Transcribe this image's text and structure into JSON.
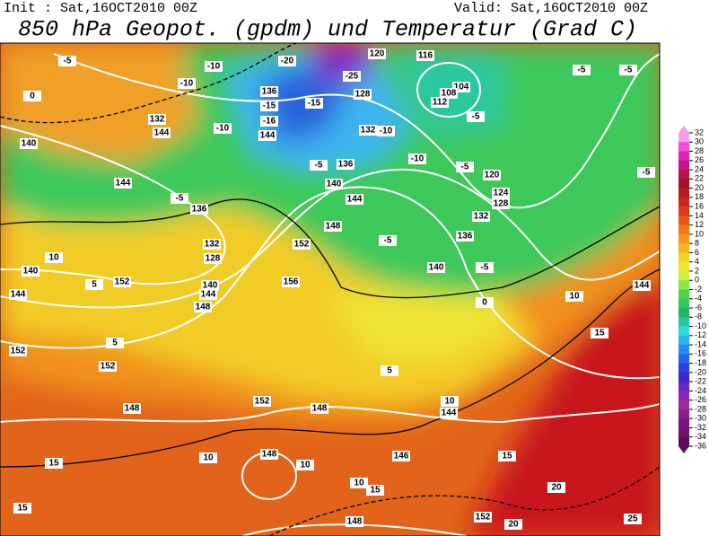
{
  "header": {
    "init": "Init : Sat,16OCT2010 00Z",
    "valid": "Valid: Sat,16OCT2010 00Z",
    "title": "850 hPa Geopot. (gpdm) und Temperatur (Grad C)"
  },
  "map": {
    "contour_labels": [
      "-5",
      "-10",
      "-20",
      "-25",
      "120",
      "116",
      "104",
      "108",
      "112",
      "-5",
      "-5",
      "-5",
      "0",
      "132",
      "-10",
      "136",
      "128",
      "-15",
      "-15",
      "-16",
      "-10",
      "144",
      "132",
      "-10",
      "144",
      "140",
      "-10",
      "-5",
      "136",
      "-5",
      "120",
      "124",
      "128",
      "-5",
      "144",
      "140",
      "144",
      "-5",
      "136",
      "132",
      "148",
      "136",
      "132",
      "152",
      "-5",
      "128",
      "140",
      "144",
      "152",
      "156",
      "140",
      "-5",
      "10",
      "5",
      "140",
      "144",
      "148",
      "0",
      "152",
      "5",
      "152",
      "148",
      "152",
      "148",
      "144",
      "10",
      "5",
      "148",
      "10",
      "10",
      "146",
      "15",
      "15",
      "10",
      "15",
      "20",
      "152",
      "148",
      "20",
      "15",
      "25",
      "15",
      "144",
      "10"
    ]
  },
  "colorbar": {
    "ticks": [
      32,
      30,
      28,
      26,
      24,
      22,
      20,
      18,
      16,
      14,
      12,
      10,
      8,
      6,
      4,
      2,
      0,
      -2,
      -4,
      -6,
      -8,
      -10,
      -12,
      -14,
      -16,
      -18,
      -20,
      -22,
      -24,
      -26,
      -28,
      -30,
      -32,
      -34,
      -36
    ]
  }
}
